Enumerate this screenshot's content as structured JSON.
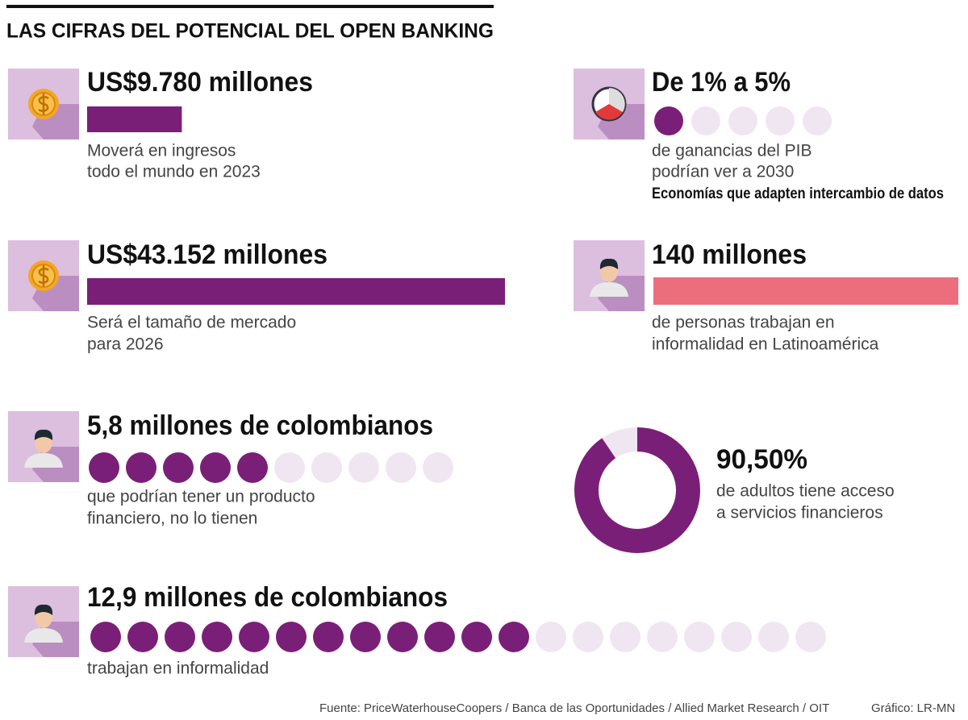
{
  "header": {
    "title": "LAS CIFRAS DEL POTENCIAL DEL OPEN BANKING"
  },
  "stats": [
    {
      "headline": "US$9.780 millones",
      "bar": 9780,
      "description": [
        "Moverá en ingresos",
        "todo el mundo en 2023"
      ]
    },
    {
      "headline": "De 1% a 5%",
      "dots_filled": 1,
      "dots_total": 5,
      "description": [
        "de ganancias del PIB",
        "podrían ver a 2030"
      ],
      "note": "Economías que adapten intercambio de datos"
    },
    {
      "headline": "US$43.152 millones",
      "bar": 43152,
      "description": [
        "Será el tamaño de mercado",
        "para 2026"
      ]
    },
    {
      "headline": "140 millones",
      "bar": 140,
      "description": [
        "de personas trabajan en",
        "informalidad en Latinoamérica"
      ]
    },
    {
      "headline": "5,8 millones de colombianos",
      "dots_filled": 5,
      "dots_total": 10,
      "description": [
        "que podrían tener un producto",
        "financiero, no lo tienen"
      ]
    },
    {
      "headline": "90,50%",
      "donut": 90.5,
      "description": [
        "de adultos tiene acceso",
        "a servicios financieros"
      ]
    },
    {
      "headline": "12,9 millones de colombianos",
      "dots_filled": 12,
      "dots_total": 20,
      "description": [
        "trabajan en informalidad"
      ]
    }
  ],
  "footer": {
    "source": "Fuente: PriceWaterhouseCoopers / Banca de las Oportunidades / Allied Market Research / OIT",
    "credit": "Gráfico: LR-MN"
  }
}
